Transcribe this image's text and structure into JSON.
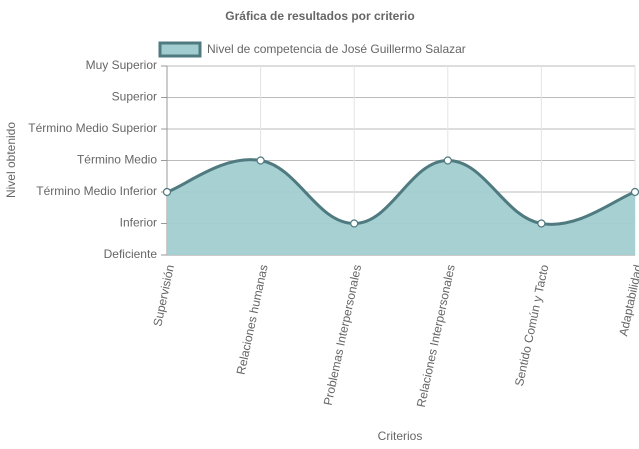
{
  "chart_data": {
    "type": "area",
    "title": "Gráfica de resultados por criterio",
    "x_label": "Criterios",
    "y_label": "Nivel obtenido",
    "categories": [
      "Supervisión",
      "Relaciones humanas",
      "Problemas Interpersonales",
      "Relaciones Interpersonales",
      "Sentido Común y Tacto",
      "Adaptabilidad"
    ],
    "series": [
      {
        "name": "Nivel de competencia de José Guillermo Salazar",
        "color": "#4f7a80",
        "fill_color": "#a1cdd0",
        "values": [
          2,
          3,
          1,
          3,
          1,
          2
        ]
      }
    ],
    "ylim": [
      0,
      6
    ],
    "yticks": [
      {
        "value": 0,
        "label": "Deficiente"
      },
      {
        "value": 1,
        "label": "Inferior"
      },
      {
        "value": 2,
        "label": "Término Medio Inferior"
      },
      {
        "value": 3,
        "label": "Término Medio"
      },
      {
        "value": 4,
        "label": "Término Medio Superior"
      },
      {
        "value": 5,
        "label": "Superior"
      },
      {
        "value": 6,
        "label": "Muy Superior"
      }
    ],
    "grid": true,
    "legend": "top"
  }
}
